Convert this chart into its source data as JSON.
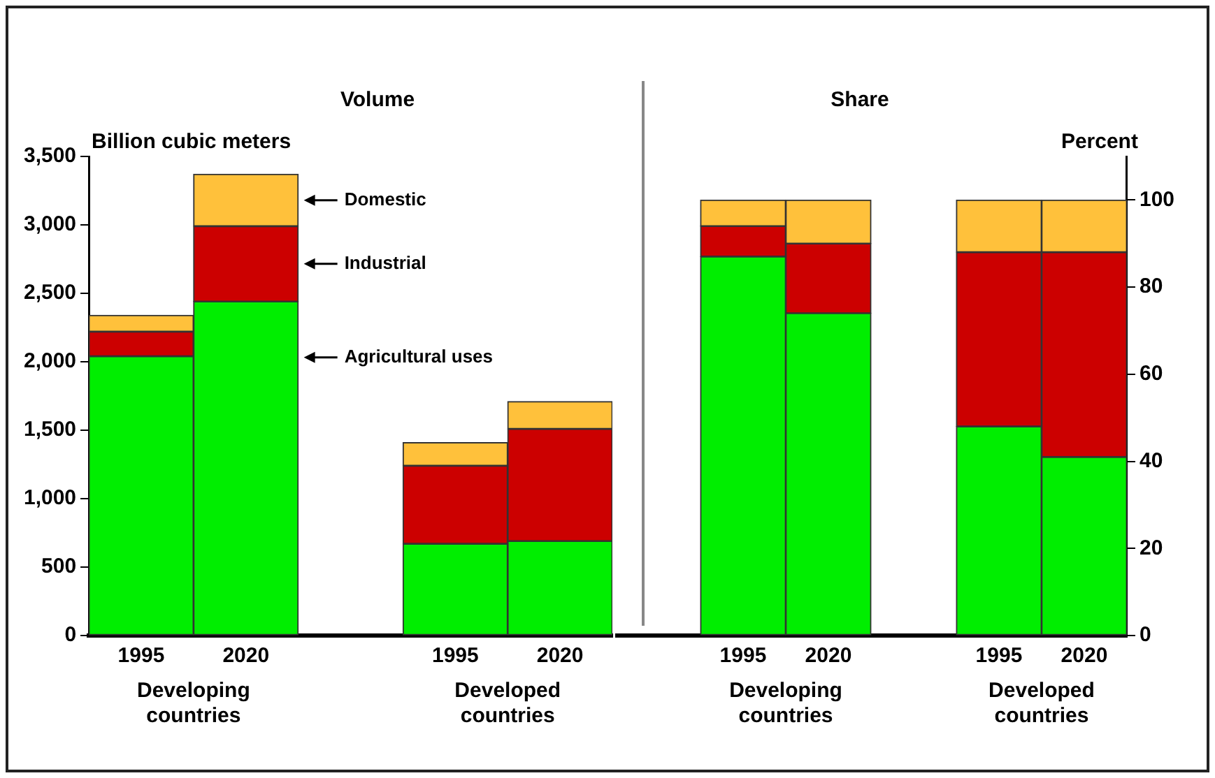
{
  "chart_data": [
    {
      "type": "bar",
      "title": "Volume",
      "ylabel": "Billion cubic meters",
      "stacked": true,
      "categories": [
        "1995",
        "2020",
        null,
        "1995",
        "2020"
      ],
      "series": [
        {
          "name": "Agricultural uses",
          "color": "#00ee00",
          "values": [
            2040,
            2440,
            null,
            670,
            690
          ]
        },
        {
          "name": "Industrial",
          "color": "#cc0000",
          "values": [
            180,
            550,
            null,
            570,
            820
          ]
        },
        {
          "name": "Domestic",
          "color": "#ffc13b",
          "values": [
            120,
            380,
            null,
            170,
            200
          ]
        }
      ],
      "ylim": [
        0,
        3500
      ],
      "yticks": [
        0,
        500,
        {
          "value": 1000,
          "label": "1,000"
        },
        {
          "value": 1500,
          "label": "1,500"
        },
        {
          "value": 2000,
          "label": "2,000"
        },
        {
          "value": 2500,
          "label": "2,500"
        },
        {
          "value": 3000,
          "label": "3,000"
        },
        {
          "value": 3500,
          "label": "3,500"
        }
      ],
      "grid": false,
      "legend": false,
      "annotations": [
        "Developing countries",
        "Developed countries"
      ]
    },
    {
      "type": "bar",
      "title": "Share",
      "ylabel": "Percent",
      "stacked": true,
      "categories": [
        null,
        "1995",
        "2020",
        null,
        "1995",
        "2020"
      ],
      "series": [
        {
          "color": "#00ee00",
          "values": [
            null,
            87,
            74,
            null,
            48,
            41
          ]
        },
        {
          "color": "#cc0000",
          "values": [
            null,
            7,
            16,
            null,
            40,
            47
          ]
        },
        {
          "color": "#ffc13b",
          "values": [
            null,
            6,
            10,
            null,
            12,
            12
          ]
        }
      ],
      "ylim": [
        0,
        110
      ],
      "yticks": [
        0,
        20,
        40,
        60,
        80,
        100
      ],
      "grid": false,
      "legend": false,
      "annotations": [
        "Developing countries",
        "Developed countries"
      ]
    }
  ]
}
